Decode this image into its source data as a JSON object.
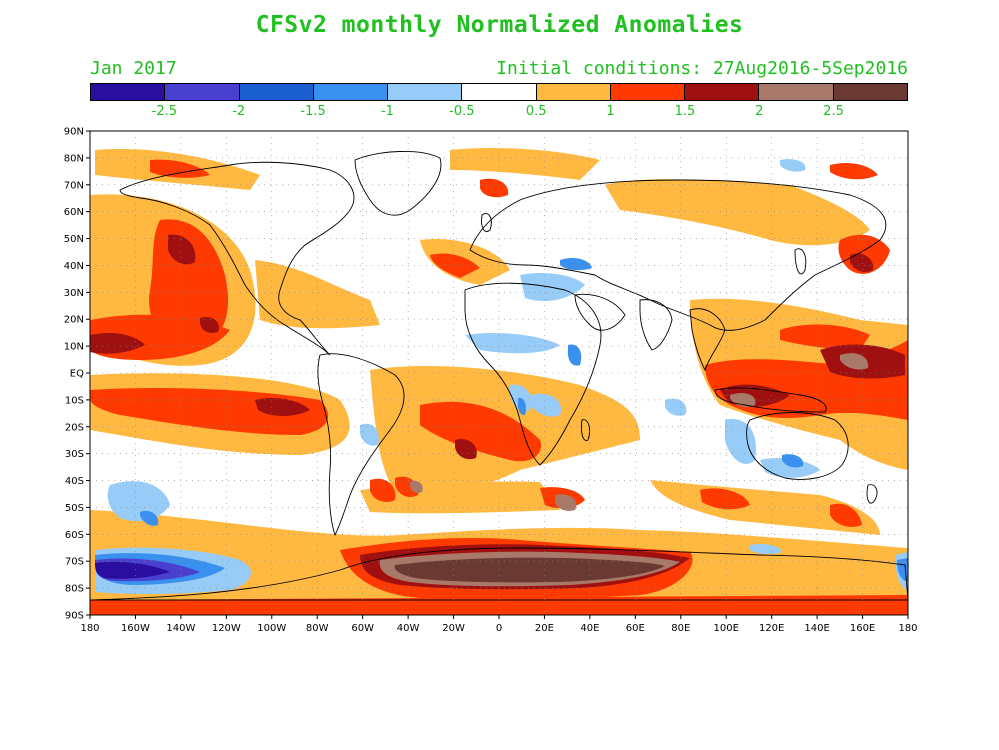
{
  "header": {
    "title": "CFSv2 monthly Normalized Anomalies",
    "target_month": "Jan 2017",
    "initial_conditions": "Initial conditions: 27Aug2016-5Sep2016",
    "text_color": "#20c020"
  },
  "colorbar": {
    "colors": [
      "#2a0ea0",
      "#4a40d0",
      "#1a5ed0",
      "#3a90ee",
      "#98ccf8",
      "#ffffff",
      "#ffb840",
      "#ff3a00",
      "#a01010",
      "#a87868",
      "#6a3a32"
    ],
    "labels": [
      "-2.5",
      "-2",
      "-1.5",
      "-1",
      "-0.5",
      "0.5",
      "1",
      "1.5",
      "2",
      "2.5"
    ]
  },
  "map": {
    "lat_labels": [
      "90N",
      "80N",
      "70N",
      "60N",
      "50N",
      "40N",
      "30N",
      "20N",
      "10N",
      "EQ",
      "10S",
      "20S",
      "30S",
      "40S",
      "50S",
      "60S",
      "70S",
      "80S",
      "90S"
    ],
    "lon_labels": [
      "180",
      "160W",
      "140W",
      "120W",
      "100W",
      "80W",
      "60W",
      "40W",
      "20W",
      "0",
      "20E",
      "40E",
      "60E",
      "80E",
      "100E",
      "120E",
      "140E",
      "160E",
      "180"
    ],
    "land_color": "#ffffff",
    "coast_color": "#000000"
  }
}
